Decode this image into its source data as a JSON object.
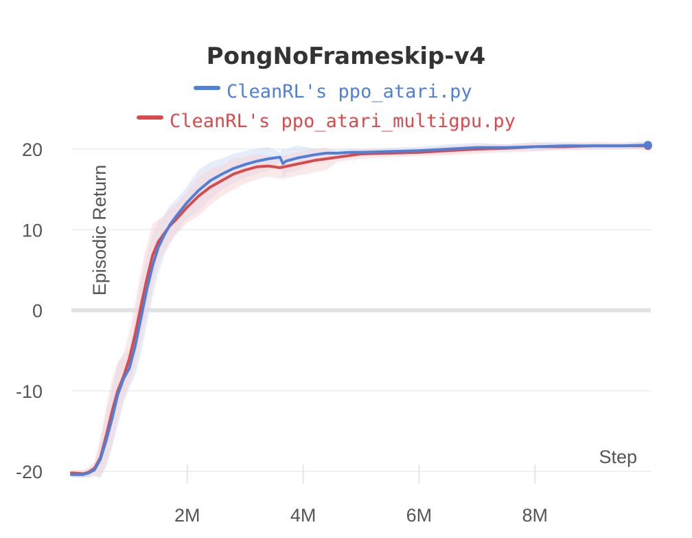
{
  "chart_data": {
    "type": "line",
    "title": "PongNoFrameskip-v4",
    "xlabel": "Step",
    "ylabel": "Episodic Return",
    "xlim": [
      0,
      10000000
    ],
    "ylim": [
      -21,
      21
    ],
    "x_ticks": [
      2000000,
      4000000,
      6000000,
      8000000
    ],
    "x_tick_labels": [
      "2M",
      "4M",
      "6M",
      "8M"
    ],
    "y_ticks": [
      -20,
      -10,
      0,
      10,
      20
    ],
    "y_tick_labels": [
      "-20",
      "-10",
      "0",
      "10",
      "20"
    ],
    "grid": true,
    "legend_position": "top-center",
    "series": [
      {
        "name": "CleanRL's ppo_atari.py",
        "color": "#4f7fd6",
        "band_color": "#cfdcf5",
        "x": [
          0,
          200000,
          300000,
          400000,
          500000,
          600000,
          700000,
          800000,
          900000,
          1000000,
          1100000,
          1200000,
          1300000,
          1400000,
          1500000,
          1600000,
          1700000,
          1800000,
          1900000,
          2000000,
          2200000,
          2400000,
          2600000,
          2800000,
          3000000,
          3200000,
          3400000,
          3600000,
          3650000,
          3700000,
          3900000,
          4200000,
          4400000,
          4600000,
          4800000,
          5000000,
          5500000,
          6000000,
          6500000,
          7000000,
          7500000,
          8000000,
          8500000,
          9000000,
          9500000,
          9950000
        ],
        "y": [
          -20.4,
          -20.4,
          -20.2,
          -19.8,
          -18.5,
          -16.2,
          -13.5,
          -10.5,
          -8.5,
          -7.2,
          -4.5,
          -1.0,
          2.5,
          5.5,
          7.8,
          9.3,
          10.6,
          11.6,
          12.5,
          13.4,
          14.9,
          16.1,
          16.9,
          17.6,
          18.1,
          18.5,
          18.8,
          19.0,
          18.2,
          18.5,
          18.9,
          19.3,
          19.5,
          19.5,
          19.6,
          19.6,
          19.7,
          19.8,
          20.0,
          20.2,
          20.2,
          20.3,
          20.4,
          20.4,
          20.4,
          20.5
        ]
      },
      {
        "name": "CleanRL's ppo_atari_multigpu.py",
        "color": "#d94a4a",
        "band_color": "#f7d6d6",
        "x": [
          0,
          200000,
          300000,
          400000,
          500000,
          600000,
          700000,
          800000,
          900000,
          1000000,
          1100000,
          1200000,
          1300000,
          1400000,
          1500000,
          1600000,
          1700000,
          1800000,
          1900000,
          2000000,
          2200000,
          2400000,
          2600000,
          2800000,
          3000000,
          3200000,
          3400000,
          3600000,
          3800000,
          4000000,
          4200000,
          4400000,
          4600000,
          4800000,
          5000000,
          5500000,
          6000000,
          6500000,
          7000000,
          7500000,
          8000000,
          8500000,
          9000000,
          9500000,
          9950000
        ],
        "y": [
          -20.2,
          -20.3,
          -20.1,
          -19.6,
          -18.3,
          -15.6,
          -12.6,
          -10.0,
          -8.2,
          -6.0,
          -3.0,
          0.5,
          3.8,
          6.8,
          8.5,
          9.5,
          10.5,
          11.2,
          12.0,
          12.8,
          14.2,
          15.3,
          16.1,
          16.9,
          17.4,
          17.8,
          17.9,
          17.7,
          18.0,
          18.3,
          18.6,
          18.8,
          19.0,
          19.2,
          19.4,
          19.5,
          19.6,
          19.8,
          20.0,
          20.1,
          20.3,
          20.3,
          20.4,
          20.4,
          20.4
        ]
      }
    ]
  }
}
